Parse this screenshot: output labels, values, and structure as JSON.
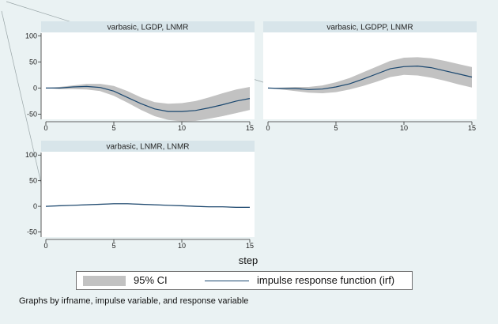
{
  "chart_data": {
    "type": "line",
    "x": [
      0,
      1,
      2,
      3,
      4,
      5,
      6,
      7,
      8,
      9,
      10,
      11,
      12,
      13,
      14,
      15
    ],
    "xticks": [
      0,
      5,
      10,
      15
    ],
    "yticks": [
      -50,
      0,
      50,
      100
    ],
    "ylim": [
      -60,
      105
    ],
    "xlabel": "step",
    "ci_color": "#c2c2c2",
    "line_color": "#1a476f",
    "panels": [
      {
        "title": "varbasic, LGDP, LNMR",
        "irf": [
          0,
          0,
          2,
          3,
          1,
          -6,
          -18,
          -30,
          -40,
          -45,
          -45,
          -43,
          -38,
          -32,
          -25,
          -20
        ],
        "lower": [
          0,
          -2,
          -2,
          -3,
          -6,
          -15,
          -28,
          -42,
          -54,
          -61,
          -64,
          -63,
          -59,
          -54,
          -48,
          -42
        ],
        "upper": [
          0,
          2,
          5,
          8,
          8,
          4,
          -6,
          -18,
          -27,
          -30,
          -29,
          -25,
          -18,
          -10,
          -3,
          2
        ]
      },
      {
        "title": "varbasic, LGDPP, LNMR",
        "irf": [
          0,
          -1,
          -1,
          -3,
          -2,
          2,
          8,
          17,
          27,
          37,
          41,
          42,
          39,
          33,
          27,
          21
        ],
        "lower": [
          0,
          -3,
          -6,
          -9,
          -10,
          -8,
          -3,
          4,
          12,
          21,
          25,
          24,
          20,
          14,
          7,
          1
        ],
        "upper": [
          0,
          1,
          2,
          2,
          5,
          11,
          19,
          30,
          41,
          52,
          58,
          59,
          57,
          52,
          46,
          40
        ]
      },
      {
        "title": "varbasic, LNMR, LNMR",
        "irf": [
          0,
          1,
          2,
          3,
          4,
          5,
          5,
          4,
          3,
          2,
          1,
          0,
          -1,
          -1,
          -2,
          -2
        ],
        "lower": [
          0,
          0,
          1,
          2,
          3,
          4,
          4,
          3,
          2,
          1,
          0,
          -1,
          -2,
          -2,
          -3,
          -3
        ],
        "upper": [
          0,
          2,
          3,
          4,
          5,
          6,
          6,
          5,
          4,
          3,
          2,
          1,
          0,
          0,
          -1,
          -1
        ]
      }
    ],
    "legend": {
      "ci": "95% CI",
      "irf": "impulse response function (irf)"
    },
    "note": "Graphs by irfname, impulse variable, and response variable"
  }
}
